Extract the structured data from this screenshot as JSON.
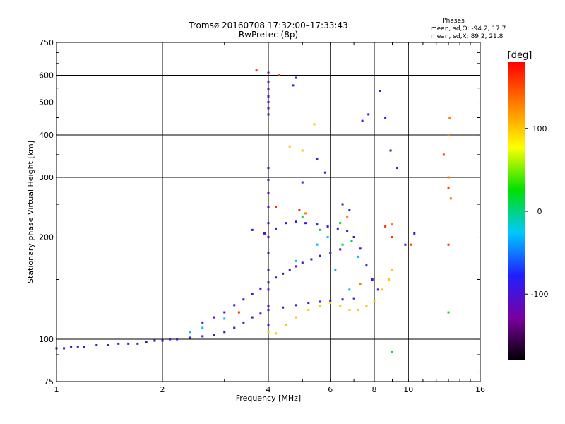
{
  "chart_data": {
    "type": "scatter",
    "title": "Tromsø 20160708 17:32:00–17:33:43",
    "subtitle": "RwPretec (8p)",
    "xlabel": "Frequency [MHz]",
    "ylabel": "Stationary phase Virtual Height [km]",
    "x_scale": "log",
    "y_scale": "log",
    "xlim": [
      1,
      16
    ],
    "ylim": [
      75,
      750
    ],
    "x_ticks": [
      1,
      2,
      4,
      6,
      8,
      10,
      16
    ],
    "y_ticks": [
      75,
      100,
      200,
      300,
      400,
      500,
      600,
      750
    ],
    "grid": true,
    "info": {
      "heading": "Phases",
      "line1": "mean, sd,O: -94.2, 17.7",
      "line2": "mean, sd,X:  89.2, 21.8"
    },
    "colorbar": {
      "label": "[deg]",
      "range": [
        -180,
        180
      ],
      "ticks": [
        100,
        0,
        -100
      ],
      "tick_labels": [
        "100",
        "0",
        "-100"
      ],
      "colormap": [
        "#000000",
        "#7a00a0",
        "#2020ff",
        "#00c8ff",
        "#00e000",
        "#ffff00",
        "#ff8000",
        "#ff0000"
      ]
    },
    "series": [
      {
        "trace": "E-region",
        "phase": -100,
        "points": [
          [
            1.0,
            94
          ],
          [
            1.05,
            94
          ],
          [
            1.1,
            95
          ],
          [
            1.15,
            95
          ],
          [
            1.2,
            95
          ],
          [
            1.3,
            96
          ],
          [
            1.4,
            96
          ],
          [
            1.5,
            97
          ],
          [
            1.6,
            97
          ],
          [
            1.7,
            97
          ],
          [
            1.8,
            98
          ],
          [
            1.9,
            99
          ],
          [
            2.0,
            99
          ],
          [
            2.1,
            100
          ],
          [
            2.2,
            100
          ],
          [
            2.4,
            101
          ],
          [
            2.6,
            102
          ],
          [
            2.8,
            103
          ],
          [
            3.0,
            105
          ],
          [
            3.2,
            108
          ],
          [
            3.4,
            112
          ],
          [
            3.6,
            116
          ],
          [
            3.8,
            119
          ],
          [
            4.0,
            122
          ],
          [
            4.4,
            124
          ],
          [
            4.8,
            126
          ],
          [
            5.2,
            128
          ],
          [
            5.6,
            129
          ],
          [
            6.0,
            130
          ],
          [
            6.5,
            131
          ],
          [
            7.0,
            132
          ]
        ]
      },
      {
        "trace": "F1-trace",
        "phase": -100,
        "points": [
          [
            2.6,
            112
          ],
          [
            2.8,
            116
          ],
          [
            3.0,
            120
          ],
          [
            3.2,
            126
          ],
          [
            3.4,
            131
          ],
          [
            3.6,
            136
          ],
          [
            3.8,
            141
          ],
          [
            4.0,
            147
          ],
          [
            4.2,
            152
          ],
          [
            4.4,
            156
          ],
          [
            4.6,
            160
          ],
          [
            4.8,
            164
          ],
          [
            5.0,
            168
          ],
          [
            5.3,
            172
          ],
          [
            5.6,
            176
          ],
          [
            6.0,
            180
          ],
          [
            6.4,
            184
          ]
        ]
      },
      {
        "trace": "vertical-4MHz",
        "phase": -110,
        "points": [
          [
            4.0,
            110
          ],
          [
            4.0,
            125
          ],
          [
            4.0,
            140
          ],
          [
            4.0,
            160
          ],
          [
            4.0,
            180
          ],
          [
            4.0,
            200
          ],
          [
            4.0,
            220
          ],
          [
            4.0,
            245
          ],
          [
            4.0,
            270
          ],
          [
            4.0,
            295
          ],
          [
            4.0,
            320
          ],
          [
            4.0,
            460
          ],
          [
            4.0,
            480
          ],
          [
            4.0,
            500
          ],
          [
            4.0,
            520
          ],
          [
            4.0,
            545
          ],
          [
            4.0,
            575
          ],
          [
            4.0,
            610
          ]
        ]
      },
      {
        "trace": "F2-O-mode",
        "phase": -95,
        "points": [
          [
            3.6,
            210
          ],
          [
            3.9,
            205
          ],
          [
            4.2,
            212
          ],
          [
            4.5,
            220
          ],
          [
            4.8,
            222
          ],
          [
            5.1,
            220
          ],
          [
            5.5,
            218
          ],
          [
            5.9,
            215
          ],
          [
            6.3,
            212
          ],
          [
            6.7,
            208
          ],
          [
            7.0,
            200
          ],
          [
            7.3,
            185
          ],
          [
            7.6,
            165
          ],
          [
            7.9,
            150
          ],
          [
            8.2,
            140
          ]
        ]
      },
      {
        "trace": "X-mode",
        "phase": 100,
        "points": [
          [
            4.0,
            105
          ],
          [
            4.2,
            104
          ],
          [
            4.5,
            110
          ],
          [
            4.8,
            116
          ],
          [
            5.2,
            122
          ],
          [
            5.6,
            125
          ],
          [
            6.0,
            128
          ],
          [
            6.4,
            125
          ],
          [
            6.8,
            122
          ],
          [
            7.2,
            122
          ],
          [
            7.6,
            125
          ],
          [
            8.0,
            130
          ],
          [
            8.4,
            140
          ],
          [
            8.8,
            150
          ],
          [
            9.0,
            160
          ],
          [
            5.0,
            360
          ],
          [
            5.4,
            430
          ],
          [
            4.6,
            370
          ]
        ]
      },
      {
        "trace": "scatter-cyan",
        "phase": -30,
        "points": [
          [
            2.4,
            105
          ],
          [
            2.6,
            108
          ],
          [
            3.0,
            115
          ],
          [
            4.8,
            170
          ],
          [
            5.5,
            190
          ],
          [
            6.2,
            160
          ],
          [
            6.8,
            140
          ],
          [
            7.2,
            175
          ],
          [
            5.9,
            200
          ]
        ]
      },
      {
        "trace": "scatter-red",
        "phase": 160,
        "points": [
          [
            3.3,
            120
          ],
          [
            4.2,
            245
          ],
          [
            4.9,
            240
          ],
          [
            8.6,
            215
          ],
          [
            9.0,
            200
          ],
          [
            10.2,
            190
          ],
          [
            13.0,
            190
          ],
          [
            13.0,
            280
          ],
          [
            12.6,
            350
          ],
          [
            4.3,
            600
          ],
          [
            3.7,
            620
          ]
        ]
      },
      {
        "trace": "scatter-orange",
        "phase": 130,
        "points": [
          [
            5.1,
            235
          ],
          [
            6.7,
            230
          ],
          [
            7.3,
            145
          ],
          [
            9.0,
            218
          ],
          [
            13.1,
            450
          ],
          [
            13.0,
            400
          ],
          [
            13.0,
            300
          ],
          [
            13.2,
            260
          ]
        ]
      },
      {
        "trace": "scatter-green",
        "phase": 20,
        "points": [
          [
            5.6,
            210
          ],
          [
            6.4,
            220
          ],
          [
            6.5,
            190
          ],
          [
            6.9,
            195
          ],
          [
            9.0,
            92
          ],
          [
            13.0,
            120
          ],
          [
            5.0,
            230
          ]
        ]
      },
      {
        "trace": "scatter-blue-hi",
        "phase": -90,
        "points": [
          [
            4.7,
            560
          ],
          [
            4.8,
            590
          ],
          [
            5.5,
            340
          ],
          [
            5.8,
            310
          ],
          [
            6.5,
            250
          ],
          [
            6.8,
            240
          ],
          [
            7.4,
            440
          ],
          [
            7.7,
            460
          ],
          [
            8.3,
            540
          ],
          [
            8.6,
            450
          ],
          [
            8.9,
            360
          ],
          [
            9.3,
            320
          ],
          [
            9.8,
            190
          ],
          [
            10.4,
            205
          ],
          [
            5.0,
            290
          ]
        ]
      }
    ]
  }
}
